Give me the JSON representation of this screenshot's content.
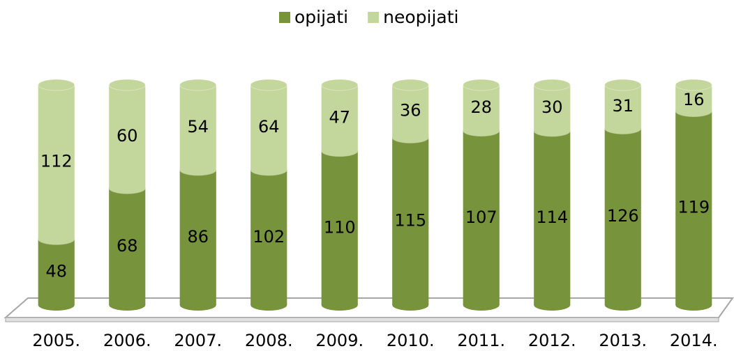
{
  "chart_data": {
    "type": "bar",
    "stacked": "percent",
    "categories": [
      "2005.",
      "2006.",
      "2007.",
      "2008.",
      "2009.",
      "2010.",
      "2011.",
      "2012.",
      "2013.",
      "2014."
    ],
    "series": [
      {
        "name": "opijati",
        "color": "#77933c",
        "values": [
          48,
          68,
          86,
          102,
          110,
          115,
          107,
          114,
          126,
          119
        ]
      },
      {
        "name": "neopijati",
        "color": "#c3d69b",
        "values": [
          112,
          60,
          54,
          64,
          47,
          36,
          28,
          30,
          31,
          16
        ]
      }
    ],
    "legend": "top"
  }
}
